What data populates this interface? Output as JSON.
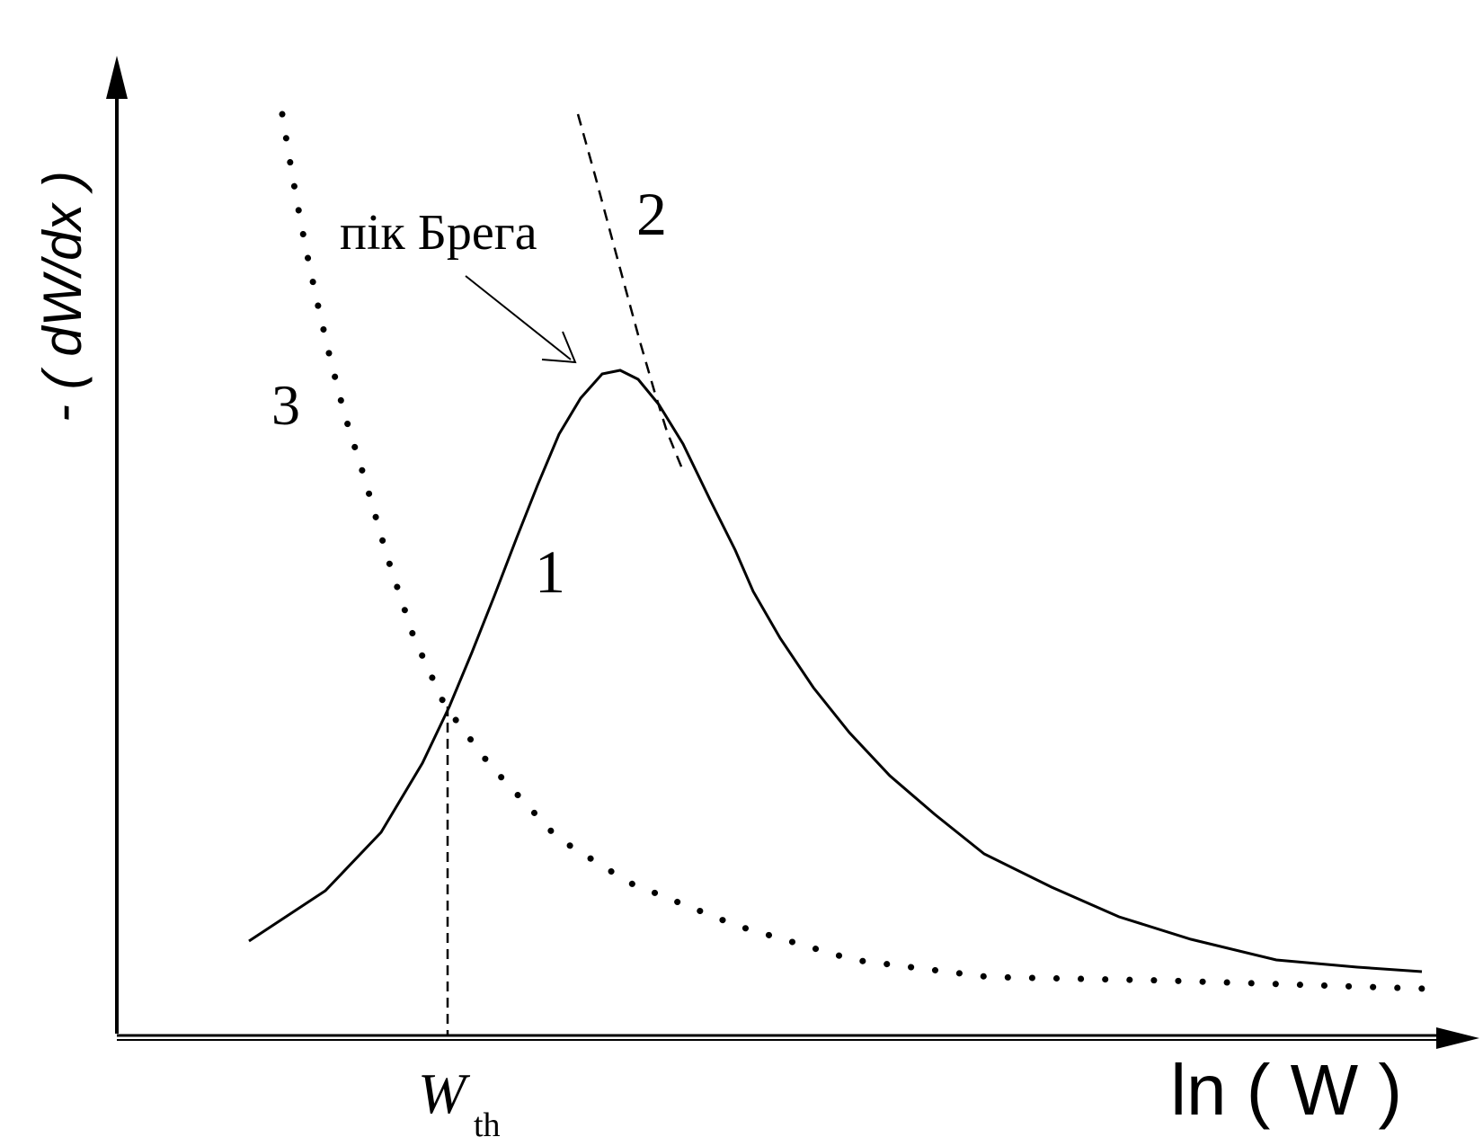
{
  "y_axis_label": "- ( dW/dx )",
  "x_axis_label": "ln ( W )",
  "threshold_label": {
    "main": "W",
    "sub": "th"
  },
  "annotation": "пік Брега",
  "curve_labels": {
    "curve1": "1",
    "curve2": "2",
    "curve3": "3"
  },
  "colors": {
    "ink": "#000000",
    "background": "#ffffff"
  }
}
